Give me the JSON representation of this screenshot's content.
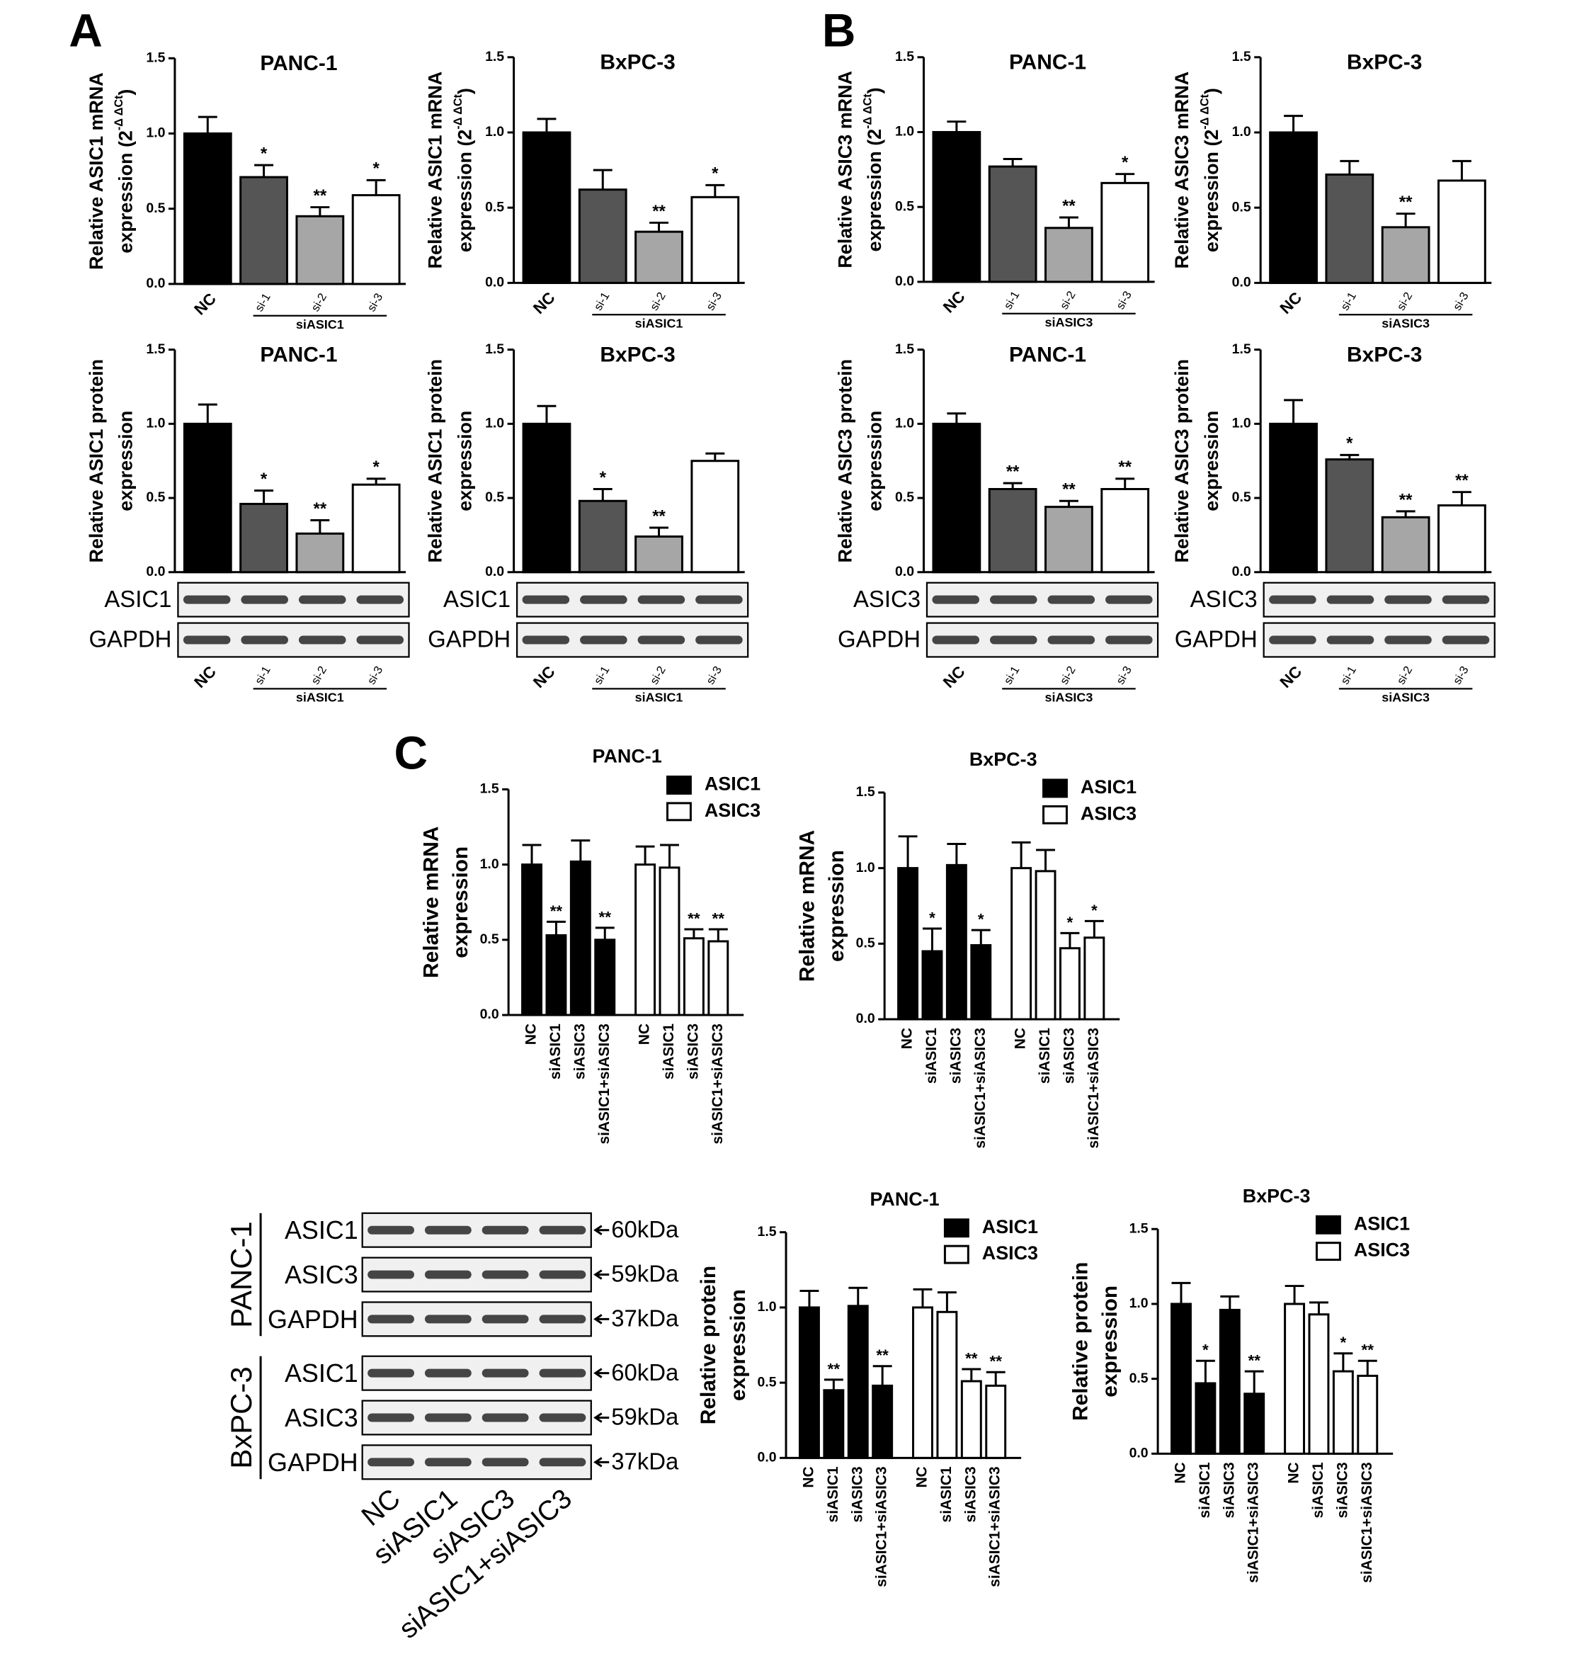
{
  "panel_labels": [
    "A",
    "B",
    "C"
  ],
  "chart_data": [
    {
      "type": "bar",
      "title": "PANC-1",
      "y_label": [
        "Relative ASIC1 mRNA",
        "expression (2"
      ],
      "y_label_sup": "-Δ ΔCt",
      "y_label_end": ")",
      "categories": [
        "NC",
        "si-1",
        "si-2",
        "si-3"
      ],
      "group_label": "siASIC1",
      "colors": [
        "#000000",
        "#555555",
        "#a6a6a6",
        "#ffffff"
      ],
      "values": [
        1.0,
        0.71,
        0.45,
        0.59
      ],
      "errors": [
        0.11,
        0.08,
        0.06,
        0.1
      ],
      "marks": [
        null,
        "*",
        "**",
        "*"
      ],
      "ylim": [
        0,
        1.5
      ],
      "yticks": [
        {
          "value": 0,
          "label": "0.0"
        },
        0.5,
        {
          "value": 1,
          "label": "1.0"
        },
        1.5
      ]
    },
    {
      "type": "bar",
      "title": "BxPC-3",
      "y_label": [
        "Relative ASIC1 mRNA",
        "expression (2"
      ],
      "y_label_sup": "-Δ ΔCt",
      "y_label_end": ")",
      "categories": [
        "NC",
        "si-1",
        "si-2",
        "si-3"
      ],
      "group_label": "siASIC1",
      "colors": [
        "#000000",
        "#555555",
        "#a6a6a6",
        "#ffffff"
      ],
      "values": [
        1.0,
        0.62,
        0.34,
        0.57
      ],
      "errors": [
        0.09,
        0.13,
        0.06,
        0.08
      ],
      "marks": [
        null,
        null,
        "**",
        "*"
      ],
      "ylim": [
        0,
        1.5
      ],
      "yticks": [
        {
          "value": 0,
          "label": "0.0"
        },
        0.5,
        {
          "value": 1,
          "label": "1.0"
        },
        1.5
      ]
    },
    {
      "type": "bar",
      "title": "PANC-1",
      "y_label": [
        "Relative ASIC1 protein",
        "expression"
      ],
      "categories": [
        "NC",
        "si-1",
        "si-2",
        "si-3"
      ],
      "group_label": "siASIC1",
      "colors": [
        "#000000",
        "#555555",
        "#a6a6a6",
        "#ffffff"
      ],
      "values": [
        1.0,
        0.46,
        0.26,
        0.59
      ],
      "errors": [
        0.13,
        0.09,
        0.09,
        0.04
      ],
      "marks": [
        null,
        "*",
        "**",
        "*"
      ],
      "blot": [
        "ASIC1",
        "GAPDH"
      ],
      "ylim": [
        0,
        1.5
      ],
      "yticks": [
        {
          "value": 0,
          "label": "0.0"
        },
        0.5,
        {
          "value": 1,
          "label": "1.0"
        },
        1.5
      ]
    },
    {
      "type": "bar",
      "title": "BxPC-3",
      "y_label": [
        "Relative ASIC1 protein",
        "expression"
      ],
      "categories": [
        "NC",
        "si-1",
        "si-2",
        "si-3"
      ],
      "group_label": "siASIC1",
      "colors": [
        "#000000",
        "#555555",
        "#a6a6a6",
        "#ffffff"
      ],
      "values": [
        1.0,
        0.48,
        0.24,
        0.75
      ],
      "errors": [
        0.12,
        0.08,
        0.06,
        0.05
      ],
      "marks": [
        null,
        "*",
        "**",
        null
      ],
      "blot": [
        "ASIC1",
        "GAPDH"
      ],
      "ylim": [
        0,
        1.5
      ],
      "yticks": [
        {
          "value": 0,
          "label": "0.0"
        },
        0.5,
        {
          "value": 1,
          "label": "1.0"
        },
        1.5
      ]
    },
    {
      "type": "bar",
      "title": "PANC-1",
      "y_label": [
        "Relative ASIC3 mRNA",
        "expression (2"
      ],
      "y_label_sup": "-Δ ΔCt",
      "y_label_end": ")",
      "categories": [
        "NC",
        "si-1",
        "si-2",
        "si-3"
      ],
      "group_label": "siASIC3",
      "colors": [
        "#000000",
        "#555555",
        "#a6a6a6",
        "#ffffff"
      ],
      "values": [
        1.0,
        0.77,
        0.36,
        0.66
      ],
      "errors": [
        0.07,
        0.05,
        0.07,
        0.06
      ],
      "marks": [
        null,
        null,
        "**",
        "*"
      ],
      "ylim": [
        0,
        1.5
      ],
      "yticks": [
        {
          "value": 0,
          "label": "0.0"
        },
        0.5,
        {
          "value": 1,
          "label": "1.0"
        },
        1.5
      ]
    },
    {
      "type": "bar",
      "title": "BxPC-3",
      "y_label": [
        "Relative ASIC3 mRNA",
        "expression (2"
      ],
      "y_label_sup": "-Δ ΔCt",
      "y_label_end": ")",
      "categories": [
        "NC",
        "si-1",
        "si-2",
        "si-3"
      ],
      "group_label": "siASIC3",
      "colors": [
        "#000000",
        "#555555",
        "#a6a6a6",
        "#ffffff"
      ],
      "values": [
        1.0,
        0.72,
        0.37,
        0.68
      ],
      "errors": [
        0.11,
        0.09,
        0.09,
        0.13
      ],
      "marks": [
        null,
        null,
        "**",
        null
      ],
      "ylim": [
        0,
        1.5
      ],
      "yticks": [
        {
          "value": 0,
          "label": "0.0"
        },
        0.5,
        {
          "value": 1,
          "label": "1.0"
        },
        1.5
      ]
    },
    {
      "type": "bar",
      "title": "PANC-1",
      "y_label": [
        "Relative ASIC3 protein",
        "expression"
      ],
      "categories": [
        "NC",
        "si-1",
        "si-2",
        "si-3"
      ],
      "group_label": "siASIC3",
      "colors": [
        "#000000",
        "#555555",
        "#a6a6a6",
        "#ffffff"
      ],
      "values": [
        1.0,
        0.56,
        0.44,
        0.56
      ],
      "errors": [
        0.07,
        0.04,
        0.04,
        0.07
      ],
      "marks": [
        null,
        "**",
        "**",
        "**"
      ],
      "blot": [
        "ASIC3",
        "GAPDH"
      ],
      "ylim": [
        0,
        1.5
      ],
      "yticks": [
        {
          "value": 0,
          "label": "0.0"
        },
        0.5,
        {
          "value": 1,
          "label": "1.0"
        },
        1.5
      ]
    },
    {
      "type": "bar",
      "title": "BxPC-3",
      "y_label": [
        "Relative ASIC3 protein",
        "expression"
      ],
      "categories": [
        "NC",
        "si-1",
        "si-2",
        "si-3"
      ],
      "group_label": "siASIC3",
      "colors": [
        "#000000",
        "#555555",
        "#a6a6a6",
        "#ffffff"
      ],
      "values": [
        1.0,
        0.76,
        0.37,
        0.45
      ],
      "errors": [
        0.16,
        0.03,
        0.04,
        0.09
      ],
      "marks": [
        null,
        "*",
        "**",
        "**"
      ],
      "blot": [
        "ASIC3",
        "GAPDH"
      ],
      "ylim": [
        0,
        1.5
      ],
      "yticks": [
        {
          "value": 0,
          "label": "0.0"
        },
        0.5,
        {
          "value": 1,
          "label": "1.0"
        },
        1.5
      ]
    },
    {
      "type": "grouped_bar",
      "title": "PANC-1",
      "y_label": [
        "Relative  mRNA",
        "expression"
      ],
      "legend": "upper right",
      "categories": [
        "NC",
        "siASIC1",
        "siASIC3",
        "siASIC1+siASIC3"
      ],
      "series": [
        {
          "name": "ASIC1",
          "color": "#000000",
          "values": [
            1.0,
            0.53,
            1.02,
            0.5
          ],
          "errors": [
            0.13,
            0.09,
            0.14,
            0.08
          ],
          "marks": [
            null,
            "**",
            null,
            "**"
          ]
        },
        {
          "name": "ASIC3",
          "color": "#ffffff",
          "values": [
            1.0,
            0.98,
            0.51,
            0.49
          ],
          "errors": [
            0.12,
            0.15,
            0.06,
            0.08
          ],
          "marks": [
            null,
            null,
            "**",
            "**"
          ]
        }
      ],
      "ylim": [
        0,
        1.5
      ],
      "yticks": [
        {
          "value": 0,
          "label": "0.0"
        },
        0.5,
        {
          "value": 1,
          "label": "1.0"
        },
        1.5
      ]
    },
    {
      "type": "grouped_bar",
      "title": "BxPC-3",
      "y_label": [
        "Relative  mRNA",
        "expression"
      ],
      "legend": "upper right",
      "categories": [
        "NC",
        "siASIC1",
        "siASIC3",
        "siASIC1+siASIC3"
      ],
      "series": [
        {
          "name": "ASIC1",
          "color": "#000000",
          "values": [
            1.0,
            0.45,
            1.02,
            0.49
          ],
          "errors": [
            0.21,
            0.15,
            0.14,
            0.1
          ],
          "marks": [
            null,
            "*",
            null,
            "*"
          ]
        },
        {
          "name": "ASIC3",
          "color": "#ffffff",
          "values": [
            1.0,
            0.98,
            0.47,
            0.54
          ],
          "errors": [
            0.17,
            0.14,
            0.1,
            0.11
          ],
          "marks": [
            null,
            null,
            "*",
            "*"
          ]
        }
      ],
      "ylim": [
        0,
        1.5
      ],
      "yticks": [
        {
          "value": 0,
          "label": "0.0"
        },
        0.5,
        {
          "value": 1,
          "label": "1.0"
        },
        1.5
      ]
    },
    {
      "type": "grouped_bar",
      "title": "PANC-1",
      "y_label": [
        "Relative  protein",
        "expression"
      ],
      "legend": "upper right",
      "categories": [
        "NC",
        "siASIC1",
        "siASIC3",
        "siASIC1+siASIC3"
      ],
      "series": [
        {
          "name": "ASIC1",
          "color": "#000000",
          "values": [
            1.0,
            0.45,
            1.01,
            0.48
          ],
          "errors": [
            0.11,
            0.07,
            0.12,
            0.13
          ],
          "marks": [
            null,
            "**",
            null,
            "**"
          ]
        },
        {
          "name": "ASIC3",
          "color": "#ffffff",
          "values": [
            1.0,
            0.97,
            0.51,
            0.48
          ],
          "errors": [
            0.12,
            0.13,
            0.08,
            0.09
          ],
          "marks": [
            null,
            null,
            "**",
            "**"
          ]
        }
      ],
      "ylim": [
        0,
        1.5
      ],
      "yticks": [
        {
          "value": 0,
          "label": "0.0"
        },
        0.5,
        {
          "value": 1,
          "label": "1.0"
        },
        1.5
      ]
    },
    {
      "type": "grouped_bar",
      "title": "BxPC-3",
      "y_label": [
        "Relative  protein",
        "expression"
      ],
      "legend": "upper right",
      "categories": [
        "NC",
        "siASIC1",
        "siASIC3",
        "siASIC1+siASIC3"
      ],
      "series": [
        {
          "name": "ASIC1",
          "color": "#000000",
          "values": [
            1.0,
            0.47,
            0.96,
            0.4
          ],
          "errors": [
            0.14,
            0.15,
            0.09,
            0.15
          ],
          "marks": [
            null,
            "*",
            null,
            "**"
          ]
        },
        {
          "name": "ASIC3",
          "color": "#ffffff",
          "values": [
            1.0,
            0.93,
            0.55,
            0.52
          ],
          "errors": [
            0.12,
            0.08,
            0.12,
            0.1
          ],
          "marks": [
            null,
            null,
            "*",
            "**"
          ]
        }
      ],
      "ylim": [
        0,
        1.5
      ],
      "yticks": [
        {
          "value": 0,
          "label": "0.0"
        },
        0.5,
        {
          "value": 1,
          "label": "1.0"
        },
        1.5
      ]
    }
  ],
  "blot_panel": {
    "groups": [
      {
        "name": "PANC-1",
        "rows": [
          {
            "label": "ASIC1",
            "size": "60kDa"
          },
          {
            "label": "ASIC3",
            "size": "59kDa"
          },
          {
            "label": "GAPDH",
            "size": "37kDa"
          }
        ]
      },
      {
        "name": "BxPC-3",
        "rows": [
          {
            "label": "ASIC1",
            "size": "60kDa"
          },
          {
            "label": "ASIC3",
            "size": "59kDa"
          },
          {
            "label": "GAPDH",
            "size": "37kDa"
          }
        ]
      }
    ],
    "categories": [
      "NC",
      "siASIC1",
      "siASIC3",
      "siASIC1+siASIC3"
    ]
  }
}
